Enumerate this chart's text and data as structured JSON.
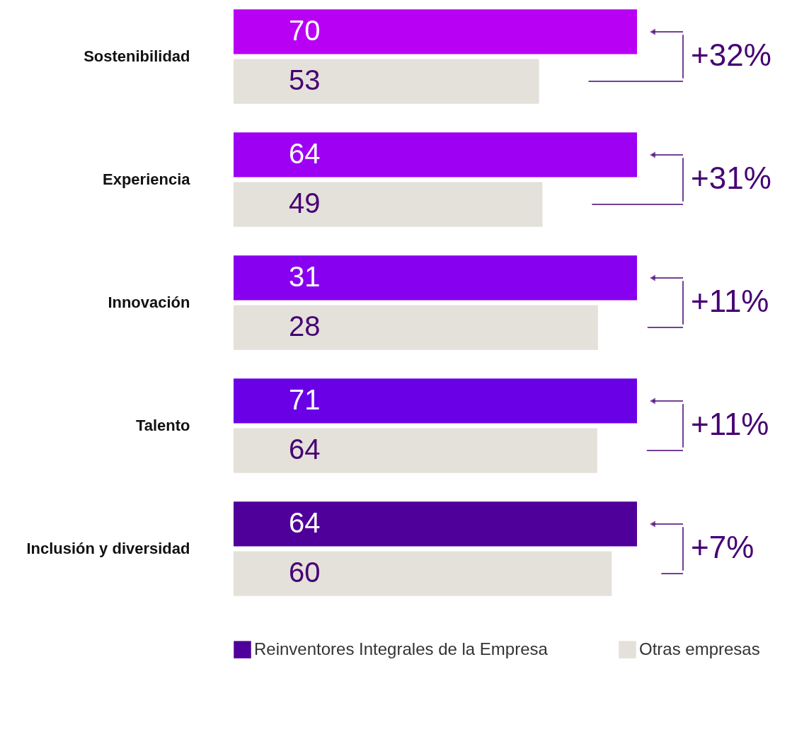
{
  "chart_data": [
    {
      "type": "bar",
      "orientation": "horizontal",
      "data_labels": true,
      "tick_labels": "y",
      "categories": [
        "Sostenibilidad"
      ],
      "xlim": [
        0,
        70
      ],
      "series": [
        {
          "color": "#b800f5",
          "values": [
            70
          ]
        },
        {
          "color": "#e3e1d9",
          "values": [
            53
          ]
        }
      ],
      "annotations": [
        "+32%"
      ]
    },
    {
      "type": "bar",
      "orientation": "horizontal",
      "data_labels": true,
      "tick_labels": "y",
      "categories": [
        "Experiencia"
      ],
      "xlim": [
        0,
        64
      ],
      "series": [
        {
          "color": "#9d00f2",
          "values": [
            64
          ]
        },
        {
          "color": "#e3e1d9",
          "values": [
            49
          ]
        }
      ],
      "annotations": [
        "+31%"
      ]
    },
    {
      "type": "bar",
      "orientation": "horizontal",
      "data_labels": true,
      "tick_labels": "y",
      "categories": [
        "Innovación"
      ],
      "xlim": [
        0,
        31
      ],
      "series": [
        {
          "color": "#8800f0",
          "values": [
            31
          ]
        },
        {
          "color": "#e3e1d9",
          "values": [
            28
          ]
        }
      ],
      "annotations": [
        "+11%"
      ]
    },
    {
      "type": "bar",
      "orientation": "horizontal",
      "data_labels": true,
      "tick_labels": "y",
      "categories": [
        "Talento"
      ],
      "xlim": [
        0,
        71
      ],
      "series": [
        {
          "color": "#6a00e6",
          "values": [
            71
          ]
        },
        {
          "color": "#e3e1d9",
          "values": [
            64
          ]
        }
      ],
      "annotations": [
        "+11%"
      ]
    },
    {
      "type": "bar",
      "orientation": "horizontal",
      "data_labels": true,
      "tick_labels": "y",
      "categories": [
        "Inclusión y diversidad"
      ],
      "xlim": [
        0,
        64
      ],
      "legend": "bottom",
      "series": [
        {
          "name": "Reinventores Integrales de la Empresa",
          "color": "#50009a",
          "values": [
            64
          ]
        },
        {
          "name": "Otras empresas",
          "color": "#e3e1d9",
          "values": [
            60
          ]
        }
      ],
      "annotations": [
        "+7%"
      ]
    }
  ]
}
